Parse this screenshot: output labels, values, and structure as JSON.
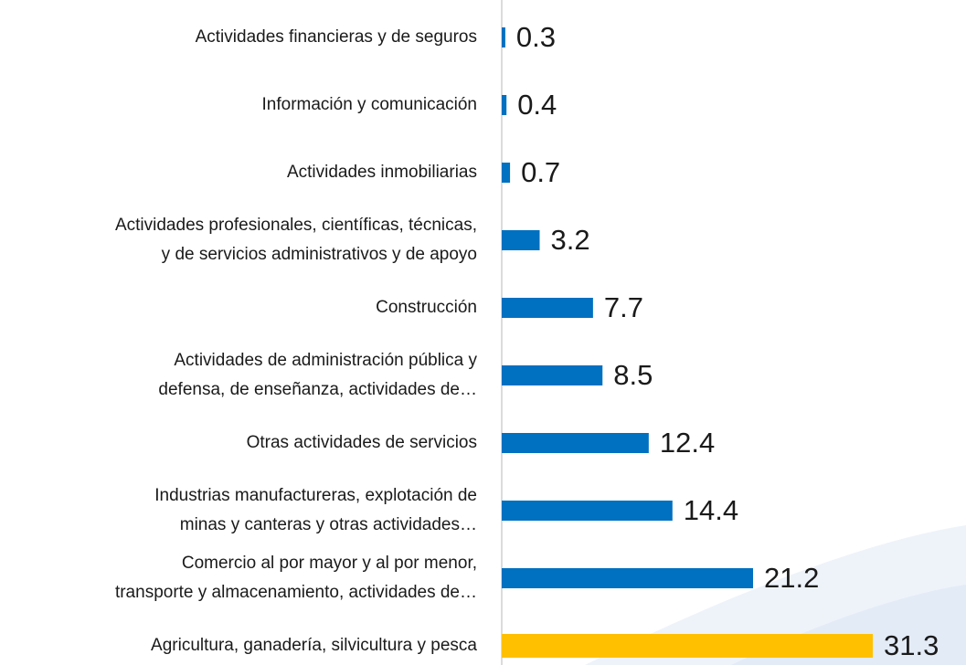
{
  "chart_data": {
    "type": "barh",
    "categories": [
      [
        "Actividades financieras y de seguros"
      ],
      [
        "Información y comunicación"
      ],
      [
        "Actividades inmobiliarias"
      ],
      [
        "Actividades profesionales, científicas, técnicas,",
        "y de servicios administrativos y de apoyo"
      ],
      [
        "Construcción"
      ],
      [
        "Actividades de administración pública y",
        "defensa, de enseñanza, actividades de…"
      ],
      [
        "Otras actividades de servicios"
      ],
      [
        "Industrias manufactureras, explotación de",
        "minas y canteras y otras actividades…"
      ],
      [
        "Comercio al por mayor y al por menor,",
        "transporte y almacenamiento, actividades de…"
      ],
      [
        "Agricultura, ganadería, silvicultura y pesca"
      ]
    ],
    "values": [
      0.3,
      0.4,
      0.7,
      3.2,
      7.7,
      8.5,
      12.4,
      14.4,
      21.2,
      31.3
    ],
    "colors": [
      "#0070c0",
      "#0070c0",
      "#0070c0",
      "#0070c0",
      "#0070c0",
      "#0070c0",
      "#0070c0",
      "#0070c0",
      "#0070c0",
      "#ffc000"
    ],
    "xlim": [
      0,
      35
    ]
  }
}
